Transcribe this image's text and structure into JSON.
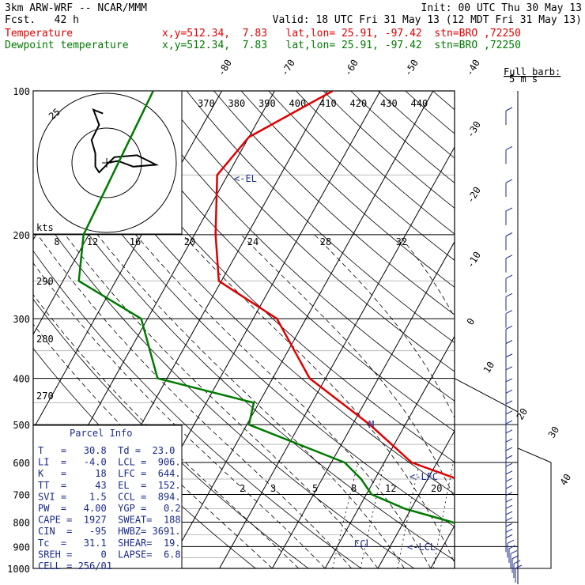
{
  "header": {
    "model": "3km ARW-WRF -- NCAR/MMM",
    "init": "Init: 00 UTC Thu 30 May 13",
    "fcst": "Fcst.   42 h",
    "valid": "Valid: 18 UTC Fri 31 May 13 (12 MDT Fri 31 May 13)",
    "temp_line": {
      "name": "Temperature",
      "info": "x,y=512.34,  7.83   lat,lon= 25.91, -97.42  stn=BRO ,72250"
    },
    "dew_line": {
      "name": "Dewpoint temperature",
      "info": "x,y=512.34,  7.83   lat,lon= 25.91, -97.42  stn=BRO ,72250"
    }
  },
  "colors": {
    "temperature": "#e00000",
    "dewpoint": "#007a00",
    "isotherm": "#000000",
    "annotation": "#1a2a8a"
  },
  "wind_legend": {
    "title": "Full barb:",
    "unit": "5 m s"
  },
  "hodograph": {
    "axis_label": "kts",
    "ring_label": "25",
    "speed_ticks": [
      "8",
      "12",
      "16",
      "20",
      "24",
      "28",
      "32"
    ],
    "points_kts": [
      [
        0,
        0
      ],
      [
        6,
        1
      ],
      [
        14,
        -2
      ],
      [
        26,
        -1
      ],
      [
        16,
        4
      ],
      [
        4,
        3
      ],
      [
        -2,
        -3
      ],
      [
        -4,
        -5
      ],
      [
        -6,
        -2
      ],
      [
        -6,
        5
      ],
      [
        -8,
        12
      ],
      [
        -4,
        20
      ],
      [
        -7,
        28
      ],
      [
        -2,
        26
      ]
    ]
  },
  "chart_data": {
    "type": "line",
    "title": "",
    "ylabel": "",
    "xlabel": "",
    "ylim": [
      1000,
      100
    ],
    "y_scale": "log-pressure",
    "pressure_ticks": [
      "100",
      "200",
      "300",
      "400",
      "500",
      "600",
      "700",
      "800",
      "900",
      "1000"
    ],
    "isotherm_labels": [
      "-80",
      "-70",
      "-60",
      "-50",
      "-40",
      "-30",
      "-20",
      "-10",
      "0",
      "10",
      "20",
      "30",
      "40"
    ],
    "isentrope_labels": [
      "370",
      "380",
      "390",
      "400",
      "410",
      "420",
      "430",
      "440"
    ],
    "left_theta_labels": [
      "290",
      "280",
      "270"
    ],
    "mixing_ratio_labels": [
      "2",
      "3",
      "5",
      "8",
      "12",
      "20"
    ],
    "grid": true,
    "series": [
      {
        "name": "Temperature",
        "x": [
          31.8,
          27.0,
          24.3,
          22.2,
          20.8,
          19.1,
          15.3,
          10.9,
          5.6,
          -4.8,
          -16.7,
          -33.0,
          -45.5,
          -60.5,
          -66.0,
          -72.0,
          -70.0,
          -59.0
        ],
        "y": [
          1000,
          950,
          925,
          900,
          850,
          800,
          750,
          700,
          650,
          600,
          500,
          400,
          300,
          250,
          200,
          150,
          125,
          100
        ]
      },
      {
        "name": "Dewpoint temperature",
        "x": [
          20.5,
          21.5,
          21.1,
          18.4,
          15.6,
          9.2,
          -1.2,
          -9.0,
          -12.6,
          -17.5,
          -39.6,
          -41.0,
          -61.8,
          -71.2,
          -87.0,
          -91.0,
          -93.0
        ],
        "y": [
          1000,
          950,
          925,
          900,
          850,
          800,
          750,
          700,
          650,
          600,
          500,
          450,
          400,
          300,
          250,
          200,
          100
        ]
      }
    ],
    "annotations": [
      "<-EL",
      "<-LFC",
      "<-LCL",
      "CCL",
      "M"
    ],
    "wind_barbs_count": 40
  },
  "parcel_info": {
    "title": "Parcel Info",
    "rows": [
      "T   =   30.8  Td =  23.0",
      "LI  =   -4.0  LCL =  906.",
      "K   =     18  LFC =  644.",
      "TT  =     43  EL  =  152.",
      "SVI =    1.5  CCL =  894.",
      "PW  =   4.00  YGP =   0.2",
      "CAPE =  1927  SWEAT=  188",
      "CIN  =   -95  HWBZ= 3691.",
      "Tc  =   31.1  SHEAR=  19.",
      "SREH =     0  LAPSE=  6.8",
      "CELL = 256/01"
    ]
  }
}
